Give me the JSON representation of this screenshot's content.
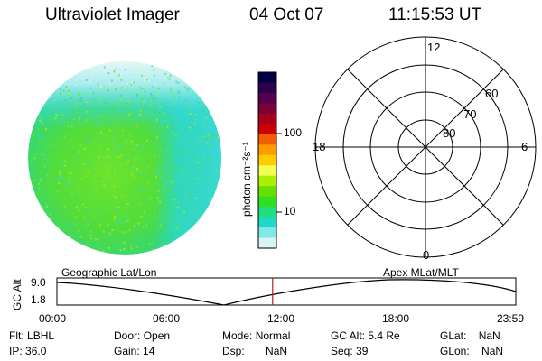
{
  "header": {
    "title": "Ultraviolet Imager",
    "date": "04 Oct 07",
    "time": "11:15:53 UT"
  },
  "colorbar": {
    "label": "photon cm⁻²s⁻¹",
    "tick_labels": [
      "100",
      "10"
    ],
    "colors": [
      "#000044",
      "#2a004e",
      "#52004e",
      "#7a0036",
      "#a8001a",
      "#cc0000",
      "#f06000",
      "#ff9a00",
      "#ffcc00",
      "#f0ff50",
      "#aaf000",
      "#66e000",
      "#2fe020",
      "#20dd80",
      "#20d8c8",
      "#7fe8e8",
      "#d8f4f4"
    ]
  },
  "polar_plot": {
    "mlt_labels": {
      "top": "12",
      "left": "18",
      "right": "6",
      "bottom": "0"
    },
    "lat_labels": [
      "60",
      "70",
      "80"
    ]
  },
  "timeline": {
    "left_label": "Geographic Lat/Lon",
    "right_label": "Apex  MLat/MLT",
    "axis_title": "GC Alt",
    "y_top": "9.0",
    "y_bottom": "1.8",
    "x_ticks": [
      "00:00",
      "06:00",
      "12:00",
      "18:00",
      "23:59"
    ],
    "marker_fraction": 0.47,
    "marker_color": "#b02020"
  },
  "status": {
    "row1": [
      {
        "label": "Flt:",
        "value": "LBHL"
      },
      {
        "label": "Door:",
        "value": "Open"
      },
      {
        "label": "Mode:",
        "value": "Normal"
      },
      {
        "label": "GC Alt:",
        "value": "5.4 Re"
      },
      {
        "label": "GLat:",
        "value": "NaN"
      }
    ],
    "row2": [
      {
        "label": "IP:",
        "value": "36.0"
      },
      {
        "label": "Gain:",
        "value": "14"
      },
      {
        "label": "Dsp:",
        "value": "NaN"
      },
      {
        "label": "Seq:",
        "value": "39"
      },
      {
        "label": "GLon:",
        "value": "NaN"
      }
    ]
  }
}
